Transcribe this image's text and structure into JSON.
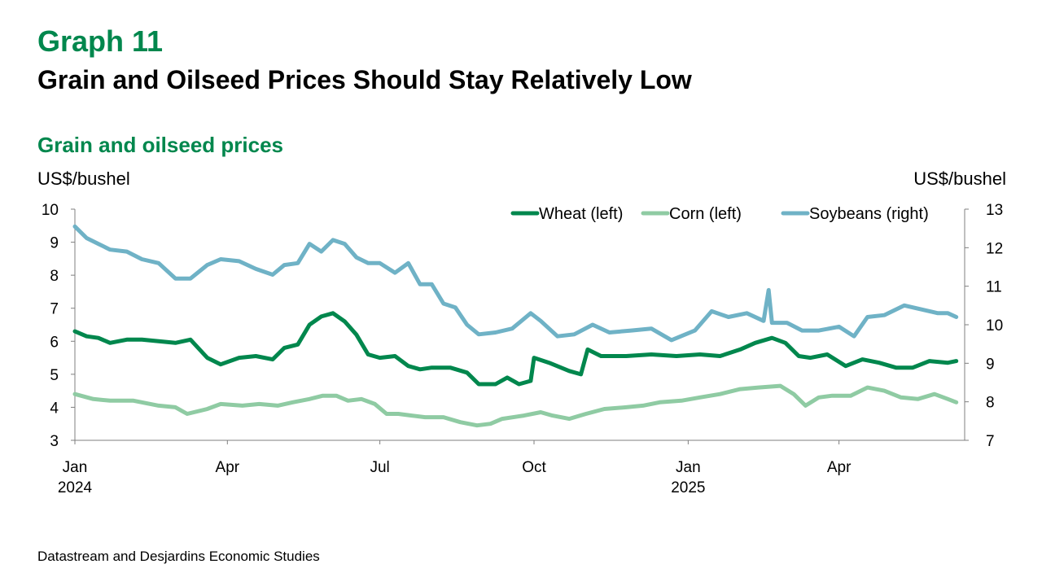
{
  "header": {
    "graph_number": "Graph 11",
    "title": "Grain and Oilseed Prices Should Stay Relatively Low",
    "subtitle": "Grain and oilseed prices",
    "unit_left": "US$/bushel",
    "unit_right": "US$/bushel"
  },
  "footer": {
    "source": "Datastream and Desjardins Economic Studies"
  },
  "colors": {
    "wheat": "#00874d",
    "corn": "#8fcba3",
    "soybeans": "#6fb2c6",
    "title": "#00874d"
  },
  "chart_data": {
    "type": "line",
    "legend_position": "top-right",
    "grid": false,
    "x_range": [
      "2024-01-01",
      "2025-06-15"
    ],
    "ylim_left": [
      3,
      10
    ],
    "ylim_right": [
      7,
      13
    ],
    "yticks_left": [
      "3",
      "4",
      "5",
      "6",
      "7",
      "8",
      "9",
      "10"
    ],
    "yticks_right": [
      "7",
      "8",
      "9",
      "10",
      "11",
      "12",
      "13"
    ],
    "x_ticks": [
      {
        "date": "2024-01-01",
        "label": "Jan",
        "year": "2024"
      },
      {
        "date": "2024-04-01",
        "label": "Apr",
        "year": ""
      },
      {
        "date": "2024-07-01",
        "label": "Jul",
        "year": ""
      },
      {
        "date": "2024-10-01",
        "label": "Oct",
        "year": ""
      },
      {
        "date": "2025-01-01",
        "label": "Jan",
        "year": "2025"
      },
      {
        "date": "2025-04-01",
        "label": "Apr",
        "year": ""
      }
    ],
    "series": [
      {
        "name": "Wheat (left)",
        "axis": "left",
        "color": "#00874d",
        "points": [
          [
            "2024-01-01",
            6.3
          ],
          [
            "2024-01-08",
            6.15
          ],
          [
            "2024-01-15",
            6.1
          ],
          [
            "2024-01-22",
            5.95
          ],
          [
            "2024-02-01",
            6.05
          ],
          [
            "2024-02-10",
            6.05
          ],
          [
            "2024-02-20",
            6.0
          ],
          [
            "2024-03-01",
            5.95
          ],
          [
            "2024-03-10",
            6.05
          ],
          [
            "2024-03-20",
            5.5
          ],
          [
            "2024-03-28",
            5.3
          ],
          [
            "2024-04-08",
            5.5
          ],
          [
            "2024-04-18",
            5.55
          ],
          [
            "2024-04-28",
            5.45
          ],
          [
            "2024-05-05",
            5.8
          ],
          [
            "2024-05-13",
            5.9
          ],
          [
            "2024-05-20",
            6.5
          ],
          [
            "2024-05-27",
            6.75
          ],
          [
            "2024-06-03",
            6.85
          ],
          [
            "2024-06-10",
            6.6
          ],
          [
            "2024-06-17",
            6.2
          ],
          [
            "2024-06-24",
            5.6
          ],
          [
            "2024-07-01",
            5.5
          ],
          [
            "2024-07-10",
            5.55
          ],
          [
            "2024-07-18",
            5.25
          ],
          [
            "2024-07-25",
            5.15
          ],
          [
            "2024-08-01",
            5.2
          ],
          [
            "2024-08-12",
            5.2
          ],
          [
            "2024-08-22",
            5.05
          ],
          [
            "2024-08-29",
            4.7
          ],
          [
            "2024-09-08",
            4.7
          ],
          [
            "2024-09-15",
            4.9
          ],
          [
            "2024-09-22",
            4.7
          ],
          [
            "2024-09-29",
            4.8
          ],
          [
            "2024-10-01",
            5.5
          ],
          [
            "2024-10-10",
            5.35
          ],
          [
            "2024-10-22",
            5.1
          ],
          [
            "2024-10-29",
            5.0
          ],
          [
            "2024-11-02",
            5.75
          ],
          [
            "2024-11-10",
            5.55
          ],
          [
            "2024-11-25",
            5.55
          ],
          [
            "2024-12-10",
            5.6
          ],
          [
            "2024-12-25",
            5.55
          ],
          [
            "2025-01-08",
            5.6
          ],
          [
            "2025-01-20",
            5.55
          ],
          [
            "2025-02-01",
            5.75
          ],
          [
            "2025-02-10",
            5.95
          ],
          [
            "2025-02-20",
            6.1
          ],
          [
            "2025-02-28",
            5.95
          ],
          [
            "2025-03-08",
            5.55
          ],
          [
            "2025-03-15",
            5.5
          ],
          [
            "2025-03-25",
            5.6
          ],
          [
            "2025-04-05",
            5.25
          ],
          [
            "2025-04-15",
            5.45
          ],
          [
            "2025-04-25",
            5.35
          ],
          [
            "2025-05-05",
            5.2
          ],
          [
            "2025-05-15",
            5.2
          ],
          [
            "2025-05-25",
            5.4
          ],
          [
            "2025-06-05",
            5.35
          ],
          [
            "2025-06-10",
            5.4
          ]
        ]
      },
      {
        "name": "Corn (left)",
        "axis": "left",
        "color": "#8fcba3",
        "points": [
          [
            "2024-01-01",
            4.4
          ],
          [
            "2024-01-12",
            4.25
          ],
          [
            "2024-01-22",
            4.2
          ],
          [
            "2024-02-05",
            4.2
          ],
          [
            "2024-02-20",
            4.05
          ],
          [
            "2024-03-01",
            4.0
          ],
          [
            "2024-03-08",
            3.8
          ],
          [
            "2024-03-20",
            3.95
          ],
          [
            "2024-03-28",
            4.1
          ],
          [
            "2024-04-10",
            4.05
          ],
          [
            "2024-04-20",
            4.1
          ],
          [
            "2024-05-01",
            4.05
          ],
          [
            "2024-05-10",
            4.15
          ],
          [
            "2024-05-20",
            4.25
          ],
          [
            "2024-05-28",
            4.35
          ],
          [
            "2024-06-05",
            4.35
          ],
          [
            "2024-06-12",
            4.2
          ],
          [
            "2024-06-20",
            4.25
          ],
          [
            "2024-06-28",
            4.1
          ],
          [
            "2024-07-05",
            3.8
          ],
          [
            "2024-07-12",
            3.8
          ],
          [
            "2024-07-20",
            3.75
          ],
          [
            "2024-07-28",
            3.7
          ],
          [
            "2024-08-08",
            3.7
          ],
          [
            "2024-08-18",
            3.55
          ],
          [
            "2024-08-28",
            3.45
          ],
          [
            "2024-09-05",
            3.5
          ],
          [
            "2024-09-12",
            3.65
          ],
          [
            "2024-09-25",
            3.75
          ],
          [
            "2024-10-05",
            3.85
          ],
          [
            "2024-10-12",
            3.75
          ],
          [
            "2024-10-22",
            3.65
          ],
          [
            "2024-11-01",
            3.8
          ],
          [
            "2024-11-12",
            3.95
          ],
          [
            "2024-11-25",
            4.0
          ],
          [
            "2024-12-05",
            4.05
          ],
          [
            "2024-12-15",
            4.15
          ],
          [
            "2024-12-28",
            4.2
          ],
          [
            "2025-01-08",
            4.3
          ],
          [
            "2025-01-20",
            4.4
          ],
          [
            "2025-02-01",
            4.55
          ],
          [
            "2025-02-12",
            4.6
          ],
          [
            "2025-02-25",
            4.65
          ],
          [
            "2025-03-05",
            4.4
          ],
          [
            "2025-03-12",
            4.05
          ],
          [
            "2025-03-20",
            4.3
          ],
          [
            "2025-03-28",
            4.35
          ],
          [
            "2025-04-08",
            4.35
          ],
          [
            "2025-04-18",
            4.6
          ],
          [
            "2025-04-28",
            4.5
          ],
          [
            "2025-05-08",
            4.3
          ],
          [
            "2025-05-18",
            4.25
          ],
          [
            "2025-05-28",
            4.4
          ],
          [
            "2025-06-05",
            4.25
          ],
          [
            "2025-06-10",
            4.15
          ]
        ]
      },
      {
        "name": "Soybeans (right)",
        "axis": "right",
        "color": "#6fb2c6",
        "points": [
          [
            "2024-01-01",
            12.55
          ],
          [
            "2024-01-08",
            12.25
          ],
          [
            "2024-01-15",
            12.1
          ],
          [
            "2024-01-22",
            11.95
          ],
          [
            "2024-02-01",
            11.9
          ],
          [
            "2024-02-10",
            11.7
          ],
          [
            "2024-02-20",
            11.6
          ],
          [
            "2024-03-01",
            11.2
          ],
          [
            "2024-03-10",
            11.2
          ],
          [
            "2024-03-20",
            11.55
          ],
          [
            "2024-03-28",
            11.7
          ],
          [
            "2024-04-08",
            11.65
          ],
          [
            "2024-04-18",
            11.45
          ],
          [
            "2024-04-28",
            11.3
          ],
          [
            "2024-05-05",
            11.55
          ],
          [
            "2024-05-13",
            11.6
          ],
          [
            "2024-05-20",
            12.1
          ],
          [
            "2024-05-27",
            11.9
          ],
          [
            "2024-06-03",
            12.2
          ],
          [
            "2024-06-10",
            12.1
          ],
          [
            "2024-06-17",
            11.75
          ],
          [
            "2024-06-24",
            11.6
          ],
          [
            "2024-07-01",
            11.6
          ],
          [
            "2024-07-10",
            11.35
          ],
          [
            "2024-07-18",
            11.6
          ],
          [
            "2024-07-25",
            11.05
          ],
          [
            "2024-08-01",
            11.05
          ],
          [
            "2024-08-08",
            10.55
          ],
          [
            "2024-08-15",
            10.45
          ],
          [
            "2024-08-22",
            10.0
          ],
          [
            "2024-08-29",
            9.75
          ],
          [
            "2024-09-08",
            9.8
          ],
          [
            "2024-09-18",
            9.9
          ],
          [
            "2024-09-29",
            10.3
          ],
          [
            "2024-10-05",
            10.1
          ],
          [
            "2024-10-15",
            9.7
          ],
          [
            "2024-10-25",
            9.75
          ],
          [
            "2024-11-05",
            10.0
          ],
          [
            "2024-11-15",
            9.8
          ],
          [
            "2024-11-28",
            9.85
          ],
          [
            "2024-12-10",
            9.9
          ],
          [
            "2024-12-22",
            9.6
          ],
          [
            "2025-01-05",
            9.85
          ],
          [
            "2025-01-15",
            10.35
          ],
          [
            "2025-01-25",
            10.2
          ],
          [
            "2025-02-05",
            10.3
          ],
          [
            "2025-02-15",
            10.1
          ],
          [
            "2025-02-18",
            10.9
          ],
          [
            "2025-02-20",
            10.05
          ],
          [
            "2025-03-01",
            10.05
          ],
          [
            "2025-03-10",
            9.85
          ],
          [
            "2025-03-20",
            9.85
          ],
          [
            "2025-04-01",
            9.95
          ],
          [
            "2025-04-10",
            9.7
          ],
          [
            "2025-04-18",
            10.2
          ],
          [
            "2025-04-28",
            10.25
          ],
          [
            "2025-05-10",
            10.5
          ],
          [
            "2025-05-20",
            10.4
          ],
          [
            "2025-05-30",
            10.3
          ],
          [
            "2025-06-05",
            10.3
          ],
          [
            "2025-06-10",
            10.2
          ]
        ]
      }
    ]
  }
}
